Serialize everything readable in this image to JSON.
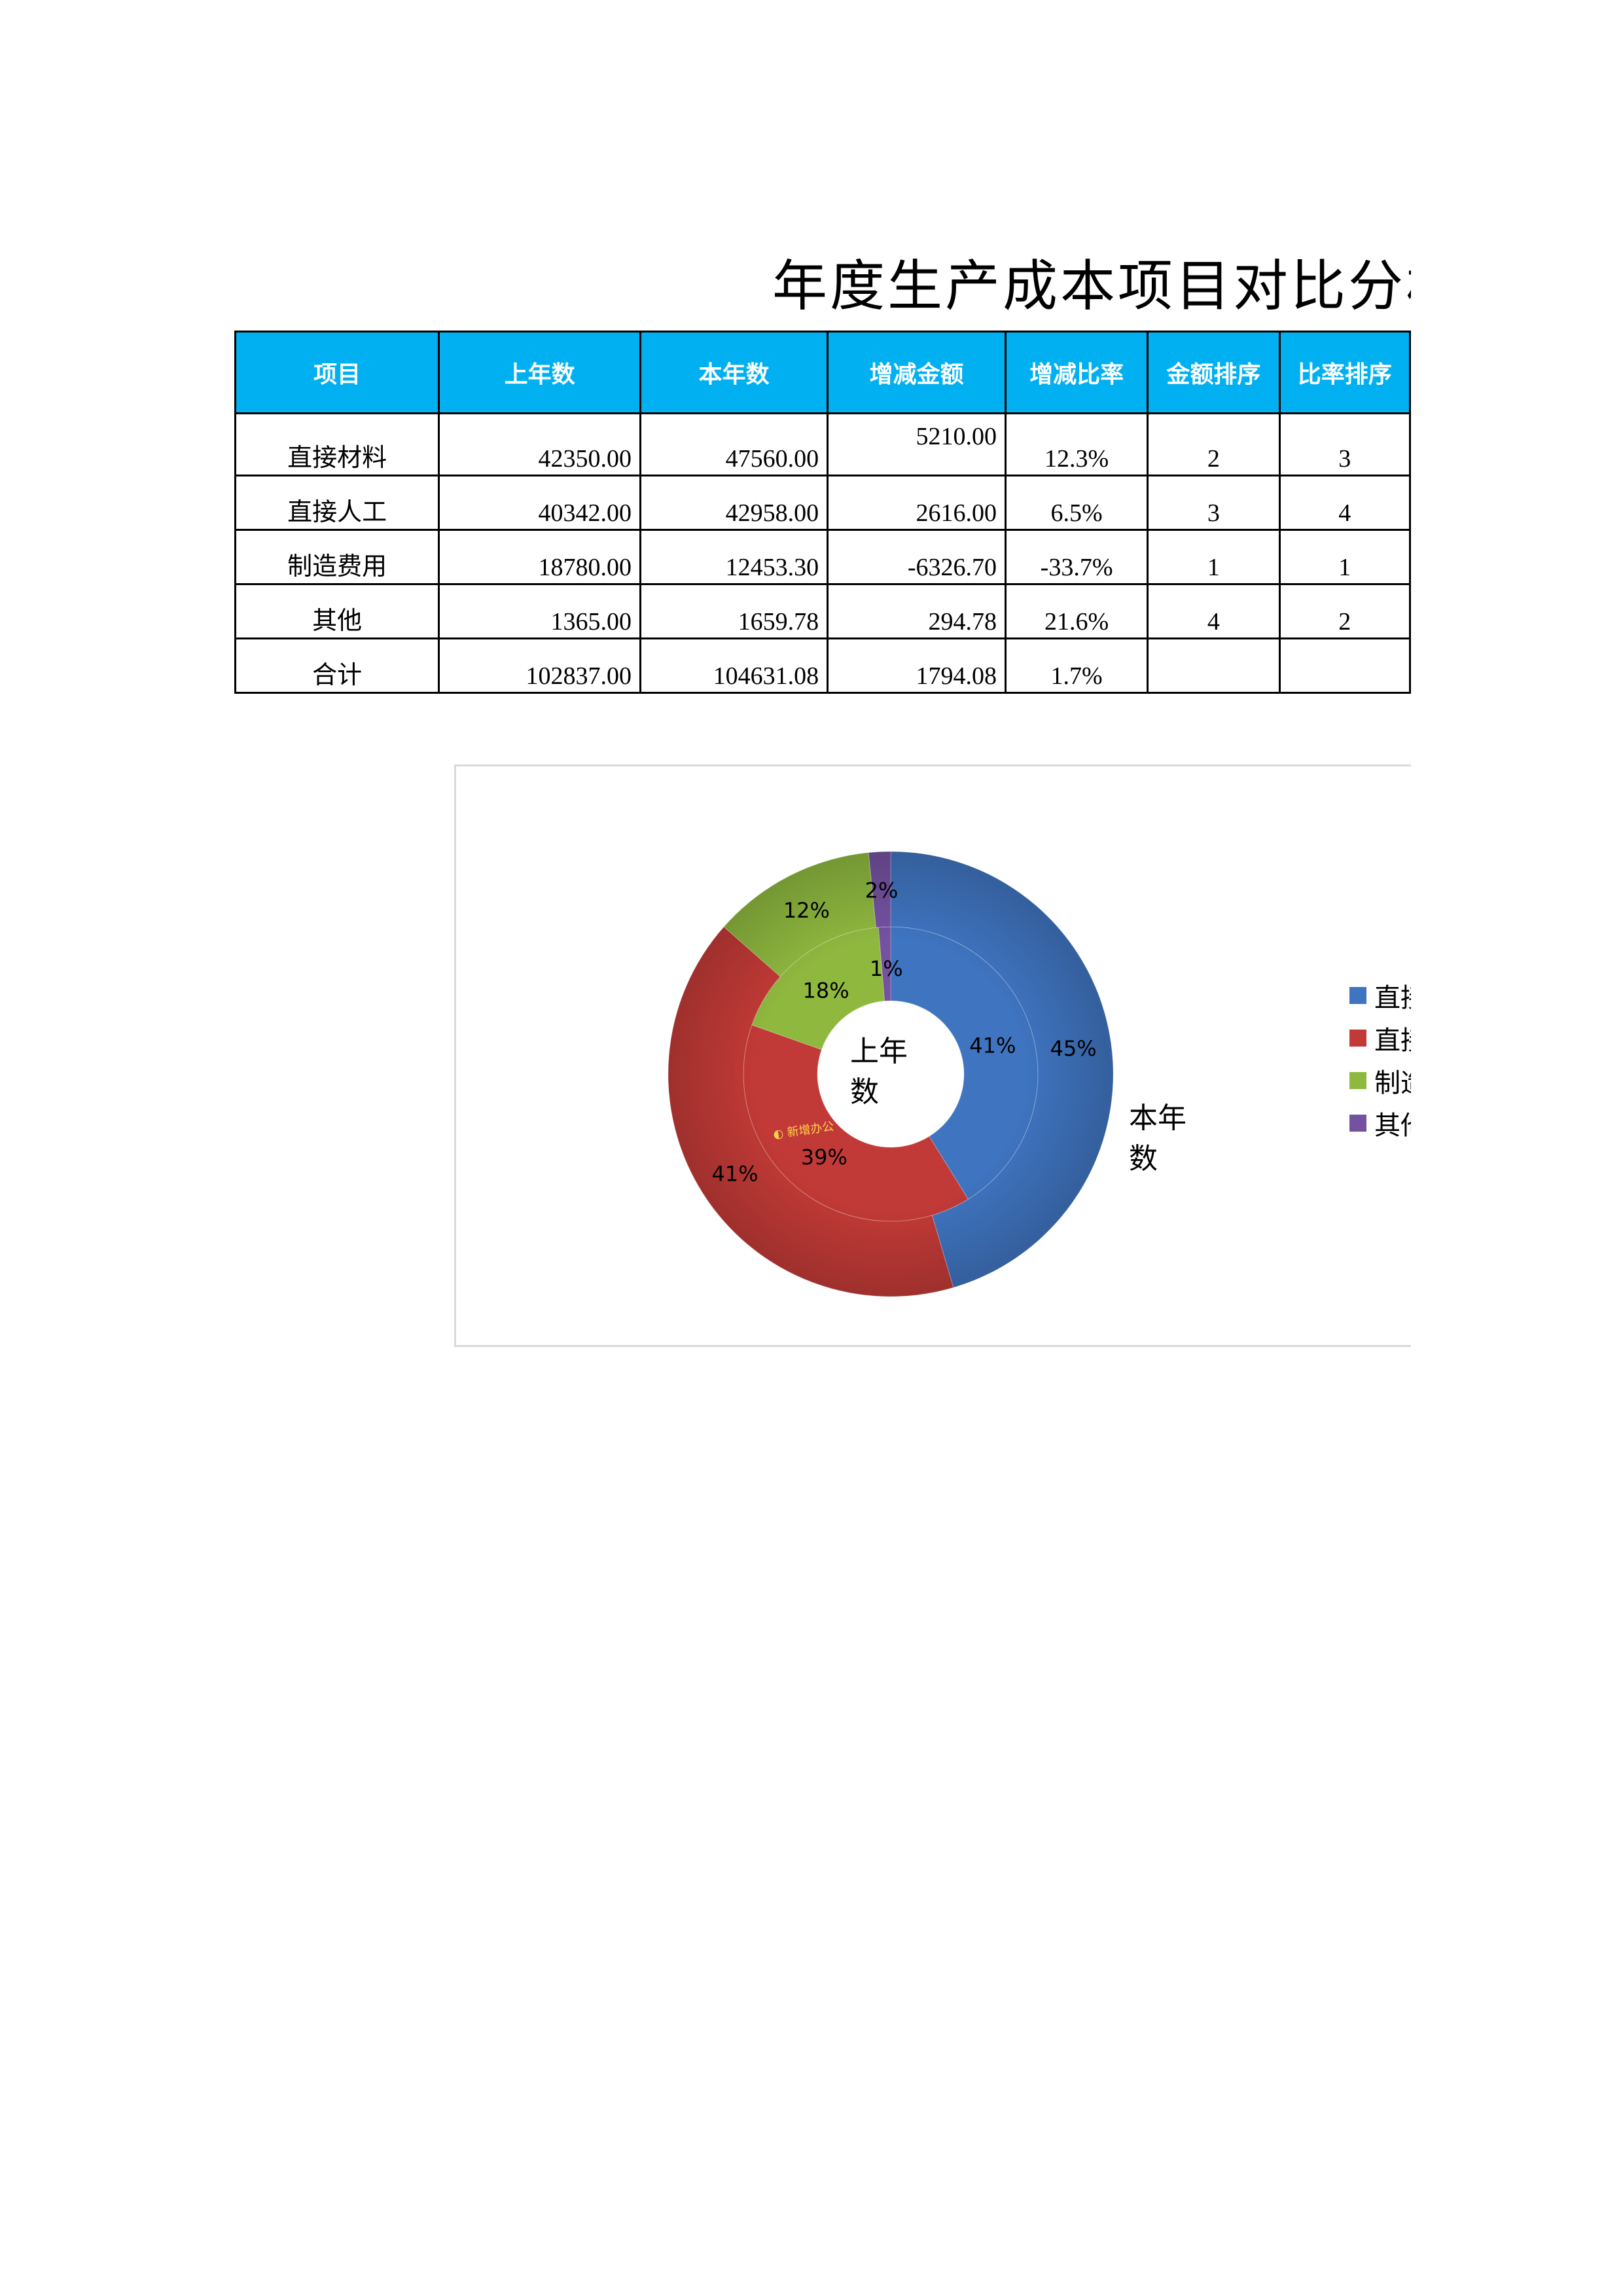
{
  "title": "年度生产成本项目对比分析",
  "table": {
    "headers": [
      "项目",
      "上年数",
      "本年数",
      "增减金额",
      "增减比率",
      "金额排序",
      "比率排序"
    ],
    "rows": [
      {
        "name": "直接材料",
        "prev": "42350.00",
        "curr": "47560.00",
        "diff": "5210.00",
        "rate": "12.3%",
        "amt_rank": "2",
        "rate_rank": "3"
      },
      {
        "name": "直接人工",
        "prev": "40342.00",
        "curr": "42958.00",
        "diff": "2616.00",
        "rate": "6.5%",
        "amt_rank": "3",
        "rate_rank": "4"
      },
      {
        "name": "制造费用",
        "prev": "18780.00",
        "curr": "12453.30",
        "diff": "-6326.70",
        "rate": "-33.7%",
        "amt_rank": "1",
        "rate_rank": "1"
      },
      {
        "name": "其他",
        "prev": "1365.00",
        "curr": "1659.78",
        "diff": "294.78",
        "rate": "21.6%",
        "amt_rank": "4",
        "rate_rank": "2"
      },
      {
        "name": "合计",
        "prev": "102837.00",
        "curr": "104631.08",
        "diff": "1794.08",
        "rate": "1.7%",
        "amt_rank": "",
        "rate_rank": ""
      }
    ]
  },
  "chart_data": {
    "type": "doughnut",
    "categories": [
      "直接材料",
      "直接人工",
      "制造费用",
      "其他"
    ],
    "colors": [
      "#3f74c0",
      "#c23a37",
      "#8fb83f",
      "#7452a0"
    ],
    "series": [
      {
        "name": "上年数",
        "values": [
          42350,
          40342,
          18780,
          1365
        ],
        "labels": [
          "41%",
          "39%",
          "18%",
          "1%"
        ],
        "ring": "inner"
      },
      {
        "name": "本年数",
        "values": [
          47560,
          42958,
          12453.3,
          1659.78
        ],
        "labels": [
          "45%",
          "41%",
          "12%",
          "2%"
        ],
        "ring": "outer"
      }
    ],
    "center_label": "上年数",
    "outer_label": "本年数",
    "legend": "right",
    "watermark": "◐ 新增办公"
  }
}
